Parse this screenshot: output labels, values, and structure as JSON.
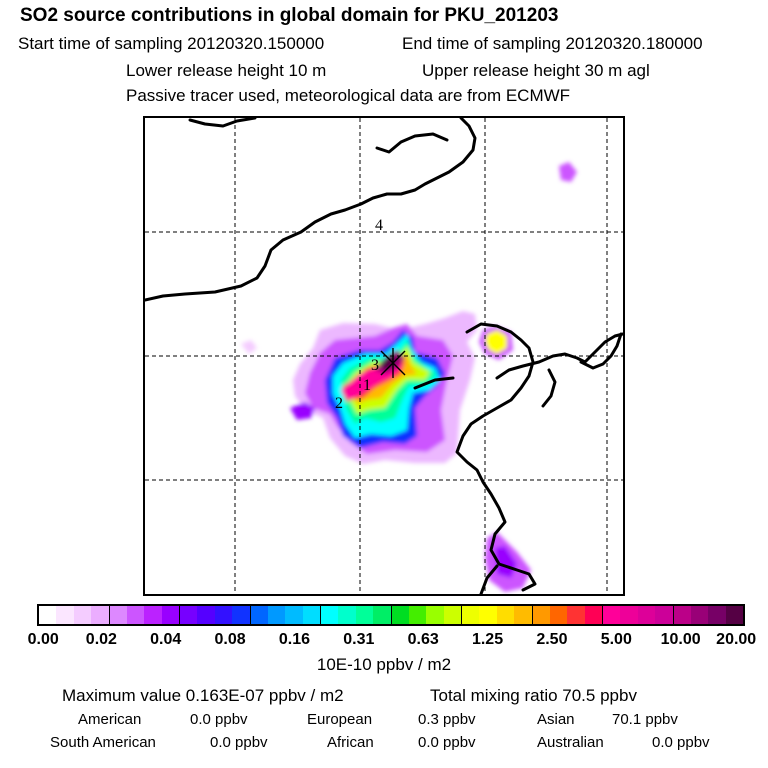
{
  "header": {
    "title": "SO2 source contributions in global domain for PKU_201203",
    "start_time": "Start time of sampling 20120320.150000",
    "end_time": "End time of sampling 20120320.180000",
    "lower_release": "Lower release height   10 m",
    "upper_release": "Upper release height   30 m    agl",
    "tracer_note": "Passive tracer used, meteorological data are from ECMWF"
  },
  "map": {
    "source_labels": [
      "1",
      "2",
      "3",
      "4"
    ]
  },
  "legend": {
    "ticks": [
      "0.00",
      "0.02",
      "0.04",
      "0.08",
      "0.16",
      "0.31",
      "0.63",
      "1.25",
      "2.50",
      "5.00",
      "10.00",
      "20.00"
    ],
    "colors": [
      "#ffffff",
      "#fbe6ff",
      "#f4ccff",
      "#ebadff",
      "#dd88ff",
      "#cc55ff",
      "#bb22ff",
      "#9900ff",
      "#7700ff",
      "#5500ff",
      "#3311ff",
      "#1133ff",
      "#0066ff",
      "#0099ff",
      "#00bbff",
      "#00ddff",
      "#00ffff",
      "#00ffcc",
      "#00ff99",
      "#00ee66",
      "#00dd22",
      "#44ee00",
      "#99ff00",
      "#ccff00",
      "#eeff00",
      "#ffff00",
      "#ffdd00",
      "#ffbb00",
      "#ff9900",
      "#ff6600",
      "#ff3333",
      "#ff0055",
      "#ff0099",
      "#ee0099",
      "#dd0099",
      "#cc0099",
      "#bb0088",
      "#990077",
      "#770066",
      "#550044"
    ],
    "unit": "10E-10 ppbv / m2"
  },
  "stats": {
    "max_value": "Maximum value  0.163E-07 ppbv / m2",
    "total_mixing": "Total mixing ratio       70.5 ppbv",
    "regions": [
      {
        "name": "American",
        "value": "0.0 ppbv"
      },
      {
        "name": "European",
        "value": "0.3 ppbv"
      },
      {
        "name": "Asian",
        "value": "70.1 ppbv"
      },
      {
        "name": "South American",
        "value": "0.0 ppbv"
      },
      {
        "name": "African",
        "value": "0.0 ppbv"
      },
      {
        "name": "Australian",
        "value": "0.0 ppbv"
      }
    ]
  }
}
